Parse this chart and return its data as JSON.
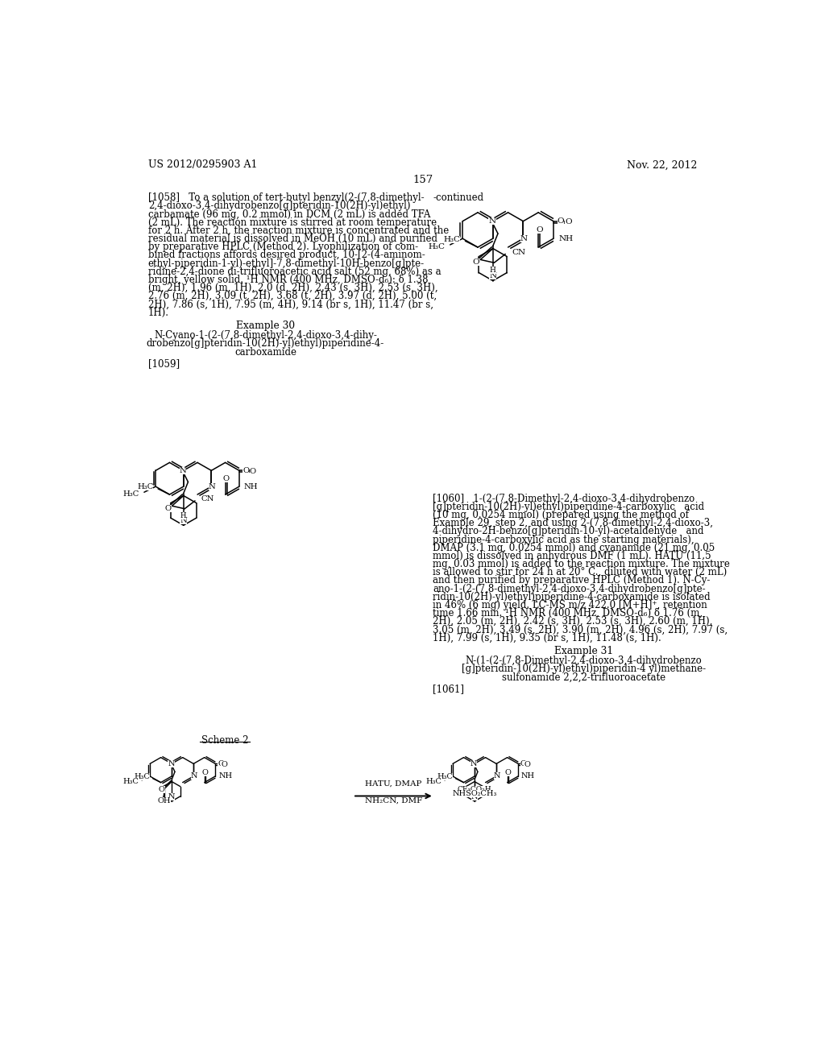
{
  "page_number": "157",
  "header_left": "US 2012/0295903 A1",
  "header_right": "Nov. 22, 2012",
  "background_color": "#ffffff",
  "text_color": "#000000",
  "continued_label": "-continued",
  "para_1058_lines": [
    "[1058]   To a solution of tert-butyl benzyl(2-(7,8-dimethyl-",
    "2,4-dioxo-3,4-dihydrobenzo[g]pteridin-10(2H)-yl)ethyl)",
    "carbamate (96 mg, 0.2 mmol) in DCM (2 mL) is added TFA",
    "(2 mL). The reaction mixture is stirred at room temperature",
    "for 2 h. After 2 h, the reaction mixture is concentrated and the",
    "residual material is dissolved in MeOH (10 mL) and purified",
    "by preparative HPLC (Method 2). Lyophilization of com-",
    "bined fractions affords desired product, 10-[2-(4-aminom-",
    "ethyl-piperidin-1-yl)-ethyl]-7,8-dimethyl-10H-benzo[g]pte-",
    "ridine-2,4-dione di-trifluoroacetic acid salt (52 mg, 68%) as a",
    "bright, yellow solid. ¹H NMR (400 MHz, DMSO-d₆): δ 1.38",
    "(m, 2H), 1.96 (m, 1H), 2.0 (d, 2H), 2.43 (s, 3H), 2.53 (s, 3H),",
    "2.76 (m, 2H), 3.09 (t, 2H), 3.68 (t, 2H), 3.97 (d, 2H), 5.00 (t,",
    "2H), 7.86 (s, 1H), 7.95 (m, 4H), 9.14 (br s, 1H), 11.47 (br s,",
    "1H)."
  ],
  "example_30_title": "Example 30",
  "example_30_name_lines": [
    "N-Cyano-1-(2-(7,8-dimethyl-2,4-dioxo-3,4-dihy-",
    "drobenzo[g]pteridin-10(2H)-yl)ethyl)piperidine-4-",
    "carboxamide"
  ],
  "para_1059": "[1059]",
  "para_1060_lines": [
    "[1060]   1-(2-(7,8-Dimethyl-2,4-dioxo-3,4-dihydrobenzo",
    "[g]pteridin-10(2H)-yl)ethyl)piperidine-4-carboxylic   acid",
    "(10 mg, 0.0254 mmol) (prepared using the method of",
    "Example 29, step 2, and using 2-(7,8-dimethyl-2,4-dioxo-3,",
    "4-dihydro-2H-benzo[g]pteridin-10-yl)-acetaldehyde   and",
    "piperidine-4-carboxylic acid as the starting materials),",
    "DMAP (3.1 mg, 0.0254 mmol) and cyanamide (21 mg, 0.05",
    "mmol) is dissolved in anhydrous DMF (1 mL). HATU (11.5",
    "mg, 0.03 mmol) is added to the reaction mixture. The mixture",
    "is allowed to stir for 24 h at 20° C., diluted with water (2 mL)",
    "and then purified by preparative HPLC (Method 1). N-Cy-",
    "ano-1-(2-(7,8-dimethyl-2,4-dioxo-3,4-dihydrobenzo[g]pte-",
    "ridin-10(2H)-yl)ethyl)piperidine-4-carboxamide is isolated",
    "in 46% (6 mg) yield. LC-MS m/z 422.0 [M+H]⁺, retention",
    "time 1.66 min. ¹H NMR (400 MHz, DMSO-d₆) δ 1.76 (m,",
    "2H), 2.05 (m, 2H), 2.42 (s, 3H), 2.53 (s, 3H), 2.60 (m, 1H),",
    "3.05 (m, 2H), 3.49 (s, 2H), 3.90 (m, 2H), 4.96 (s, 2H), 7.97 (s,",
    "1H), 7.99 (s, 1H), 9.35 (br s, 1H), 11.48 (s, 1H)."
  ],
  "example_31_title": "Example 31",
  "example_31_name_lines": [
    "N-(1-(2-(7,8-Dimethyl-2,4-dioxo-3,4-dihydrobenzo",
    "[g]pteridin-10(2H)-yl)ethyl)piperidin-4 yl)methane-",
    "sulfonamide 2,2,2-trifluoroacetate"
  ],
  "para_1061": "[1061]",
  "scheme_2_label": "Scheme 2",
  "arrow_line1": "HATU, DMAP",
  "arrow_line2": "NH₂CN, DMF"
}
